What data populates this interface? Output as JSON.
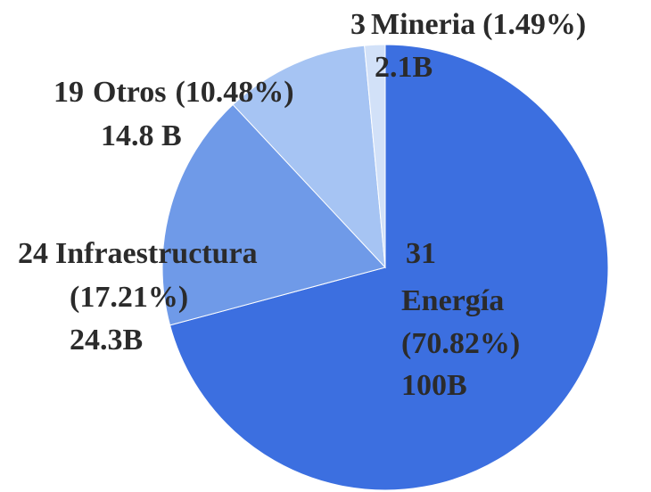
{
  "chart_data": {
    "type": "pie",
    "categories": [
      "Energía",
      "Infraestructura",
      "Otros",
      "Mineria"
    ],
    "counts": [
      31,
      24,
      19,
      3
    ],
    "values": [
      70.82,
      17.21,
      10.48,
      1.49
    ],
    "value_labels": [
      "(70.82%)",
      "(17.21%)",
      "(10.48%)",
      "(1.49%)"
    ],
    "amount_labels": [
      "100B",
      "24.3B",
      "14.8 B",
      "2.1B"
    ],
    "colors": [
      "#3c6fe0",
      "#6f9ae8",
      "#a6c4f3",
      "#d2e1f8"
    ]
  }
}
